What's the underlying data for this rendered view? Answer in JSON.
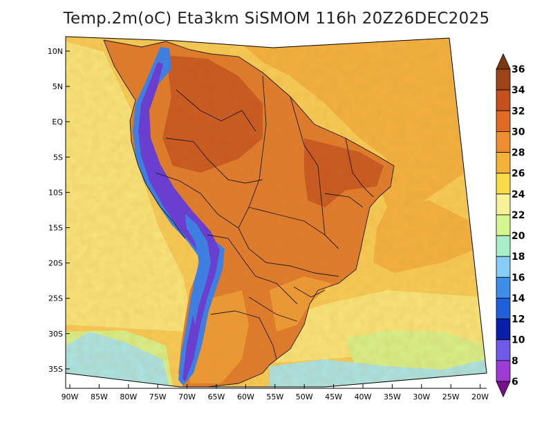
{
  "title": "Temp.2m(oC) Eta3km SiSMOM 116h 20Z26DEC2025",
  "x_axis_labels": [
    "90W",
    "85W",
    "80W",
    "75W",
    "70W",
    "65W",
    "60W",
    "55W",
    "50W",
    "45W",
    "40W",
    "35W",
    "30W",
    "25W",
    "20W"
  ],
  "y_axis_labels": [
    "10N",
    "5N",
    "EQ",
    "5S",
    "10S",
    "15S",
    "20S",
    "25S",
    "30S",
    "35S"
  ],
  "colorbar": {
    "labels": [
      "36",
      "34",
      "32",
      "30",
      "28",
      "26",
      "24",
      "22",
      "20",
      "18",
      "16",
      "14",
      "12",
      "10",
      "8",
      "6"
    ],
    "colors": [
      "#7a3a12",
      "#9c4317",
      "#c4501c",
      "#e06a24",
      "#f08c30",
      "#f6b13a",
      "#f9db4a",
      "#f7f29a",
      "#d5f58f",
      "#a9eec8",
      "#86ccf4",
      "#3e8ee8",
      "#1f5fd8",
      "#0a1ea8",
      "#6f5ce6",
      "#9d3bd4",
      "#7a0f8e"
    ]
  },
  "palette": {
    "ocean_main": "#f8cc55",
    "ocean_warm": "#f4b23e",
    "ocean_cool": "#f9e679",
    "ocean_cold": "#d8f28a",
    "ocean_colder": "#a9e6e8",
    "land_hot": "#c8561f",
    "land_warm": "#e07a2a",
    "land_mid": "#ee9a34",
    "andes_cold": "#3e7fe0",
    "andes_colder": "#6a3fd0",
    "borders": "#1a1a1a"
  }
}
